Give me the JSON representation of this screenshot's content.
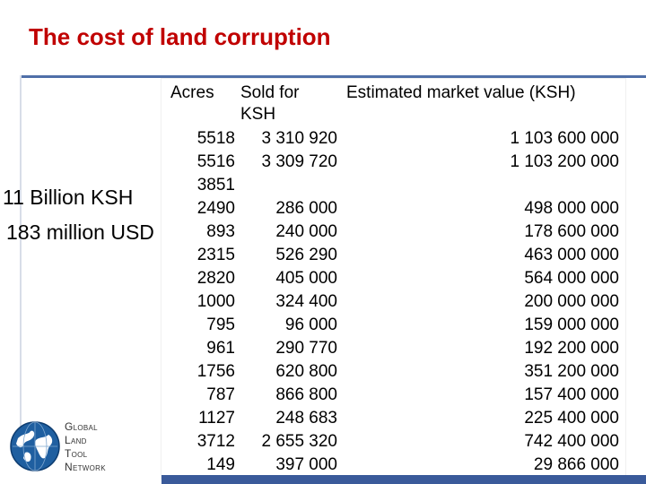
{
  "title": "The cost of land corruption",
  "summary": {
    "ksh": "11 Billion KSH",
    "usd": "183 million USD"
  },
  "table": {
    "headers": {
      "acres": "Acres",
      "sold": "Sold for KSH",
      "market": "Estimated market value (KSH)"
    },
    "rows": [
      {
        "acres": "5518",
        "sold": "3 310 920",
        "market": "1 103 600 000"
      },
      {
        "acres": "5516",
        "sold": "3 309 720",
        "market": "1 103 200 000"
      },
      {
        "acres": "3851",
        "sold": "",
        "market": ""
      },
      {
        "acres": "2490",
        "sold": "286 000",
        "market": "498 000 000"
      },
      {
        "acres": "893",
        "sold": "240 000",
        "market": "178 600 000"
      },
      {
        "acres": "2315",
        "sold": "526 290",
        "market": "463 000 000"
      },
      {
        "acres": "2820",
        "sold": "405 000",
        "market": "564 000 000"
      },
      {
        "acres": "1000",
        "sold": "324 400",
        "market": "200 000 000"
      },
      {
        "acres": "795",
        "sold": "96 000",
        "market": "159 000 000"
      },
      {
        "acres": "961",
        "sold": "290 770",
        "market": "192 200 000"
      },
      {
        "acres": "1756",
        "sold": "620 800",
        "market": "351 200 000"
      },
      {
        "acres": "787",
        "sold": "866 800",
        "market": "157 400 000"
      },
      {
        "acres": "1127",
        "sold": "248 683",
        "market": "225 400 000"
      },
      {
        "acres": "3712",
        "sold": "2 655 320",
        "market": "742 400 000"
      },
      {
        "acres": "149",
        "sold": "397 000",
        "market": "29 866 000"
      }
    ]
  },
  "logo": {
    "lines": [
      "Global",
      "Land",
      "Tool",
      "Network"
    ],
    "globe_color": "#1f5fa0",
    "icon": "globe-icon"
  },
  "colors": {
    "title": "#c00000",
    "rule": "#4f6fa8",
    "bar": "#3a5a9a"
  }
}
